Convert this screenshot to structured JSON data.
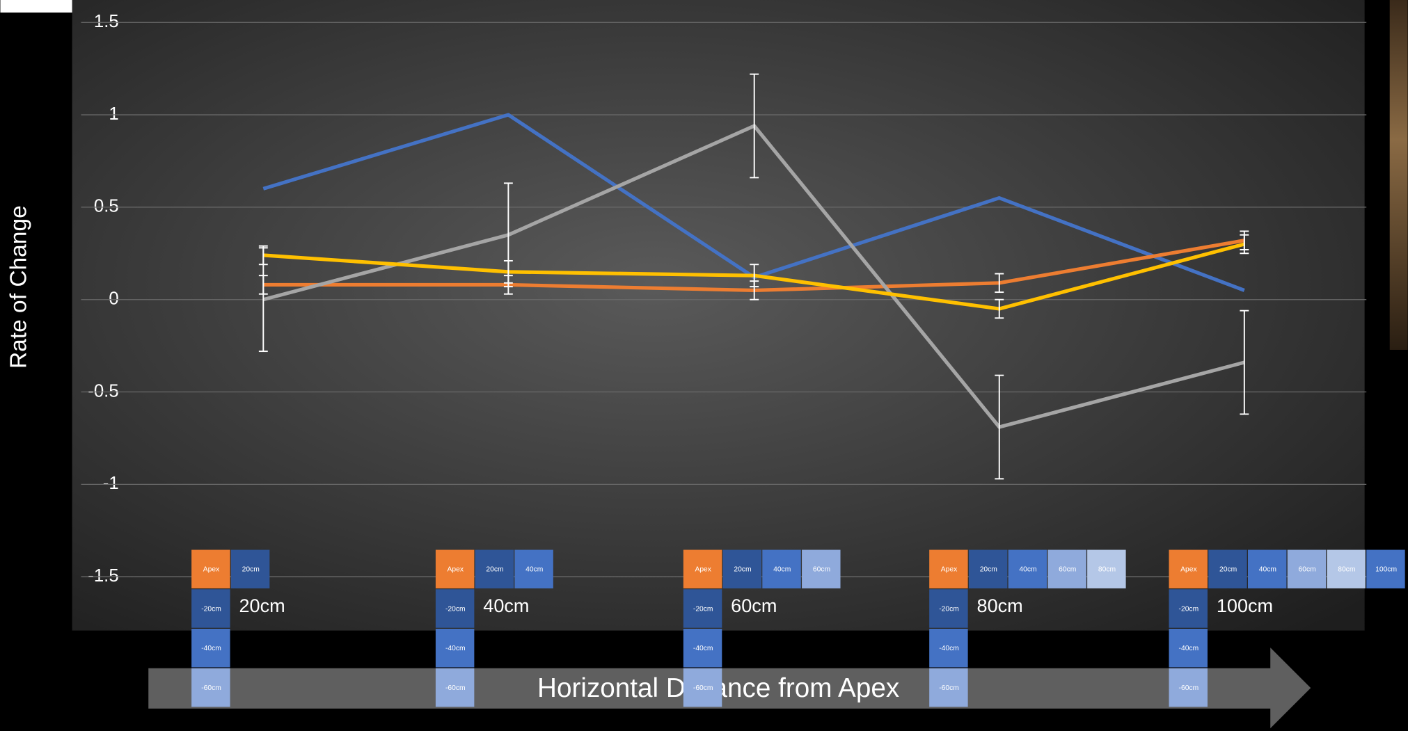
{
  "chart_data": {
    "type": "line",
    "y_label": "Rate of Change",
    "x_label": "Horizontal Distance from Apex",
    "categories": [
      "20cm",
      "40cm",
      "60cm",
      "80cm",
      "100cm"
    ],
    "series": [
      {
        "color": "#4472c4",
        "values": [
          0.6,
          1.0,
          0.12,
          0.55,
          0.05
        ]
      },
      {
        "color": "#ed7d31",
        "values": [
          0.08,
          0.08,
          0.05,
          0.09,
          0.32
        ],
        "errors": [
          0.05,
          0.05,
          0.05,
          0.05,
          0.05
        ]
      },
      {
        "color": "#a5a5a5",
        "values": [
          0,
          0.35,
          0.94,
          -0.69,
          -0.34
        ],
        "errors": [
          0.28,
          0.28,
          0.28,
          0.28,
          0.28
        ]
      },
      {
        "color": "#ffc000",
        "values": [
          0.24,
          0.15,
          0.13,
          -0.05,
          0.3
        ],
        "errors": [
          0.05,
          0.06,
          0.06,
          0.05,
          0.05
        ]
      }
    ],
    "ylim": [
      -1.5,
      1.5
    ],
    "yticks": [
      -1.5,
      -1,
      -0.5,
      0,
      0.5,
      1,
      1.5
    ],
    "grid": true
  },
  "depth_diagrams": [
    {
      "columns": [
        "Apex",
        "20cm"
      ],
      "rows": [
        "-20cm",
        "-40cm",
        "-60cm"
      ]
    },
    {
      "columns": [
        "Apex",
        "20cm",
        "40cm"
      ],
      "rows": [
        "-20cm",
        "-40cm",
        "-60cm"
      ]
    },
    {
      "columns": [
        "Apex",
        "20cm",
        "40cm",
        "60cm"
      ],
      "rows": [
        "-20cm",
        "-40cm",
        "-60cm"
      ]
    },
    {
      "columns": [
        "Apex",
        "20cm",
        "40cm",
        "60cm",
        "80cm"
      ],
      "rows": [
        "-20cm",
        "-40cm",
        "-60cm"
      ]
    },
    {
      "columns": [
        "Apex",
        "20cm",
        "40cm",
        "60cm",
        "80cm",
        "100cm"
      ],
      "rows": [
        "-20cm",
        "-40cm",
        "-60cm"
      ]
    }
  ]
}
